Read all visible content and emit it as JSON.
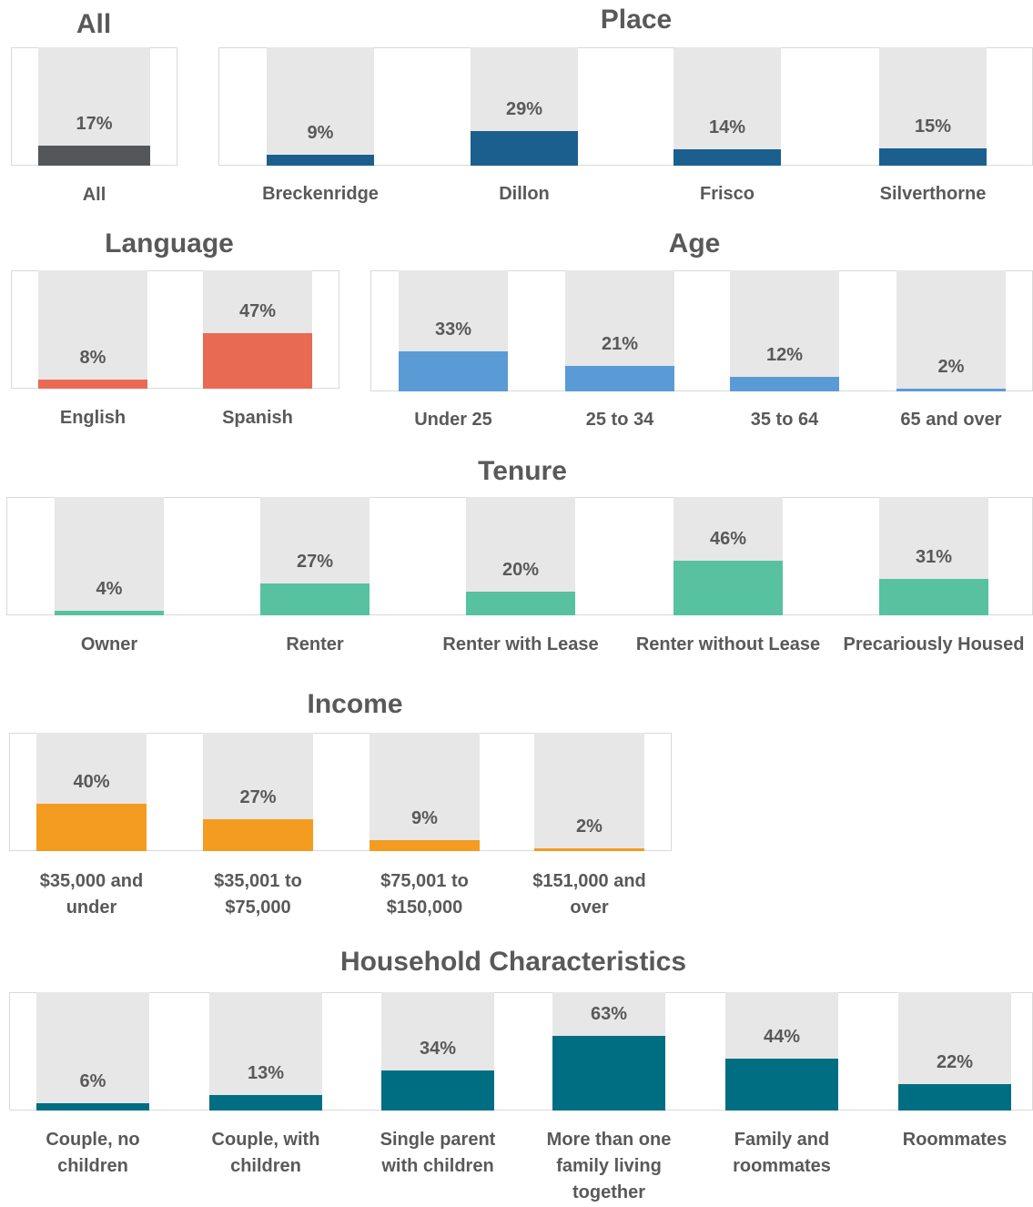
{
  "chart_data": [
    {
      "type": "bar",
      "title": "All",
      "categories": [
        "All"
      ],
      "values": [
        17
      ],
      "value_labels": [
        "17%"
      ],
      "color": "#53575a",
      "ylim": [
        0,
        100
      ]
    },
    {
      "type": "bar",
      "title": "Place",
      "categories": [
        "Breckenridge",
        "Dillon",
        "Frisco",
        "Silverthorne"
      ],
      "values": [
        9,
        29,
        14,
        15
      ],
      "value_labels": [
        "9%",
        "29%",
        "14%",
        "15%"
      ],
      "color": "#1b5f8f",
      "ylim": [
        0,
        100
      ]
    },
    {
      "type": "bar",
      "title": "Language",
      "categories": [
        "English",
        "Spanish"
      ],
      "values": [
        8,
        47
      ],
      "value_labels": [
        "8%",
        "47%"
      ],
      "color": "#e96a53",
      "ylim": [
        0,
        100
      ]
    },
    {
      "type": "bar",
      "title": "Age",
      "categories": [
        "Under 25",
        "25 to 34",
        "35 to 64",
        "65 and over"
      ],
      "values": [
        33,
        21,
        12,
        2
      ],
      "value_labels": [
        "33%",
        "21%",
        "12%",
        "2%"
      ],
      "color": "#5b9bd5",
      "ylim": [
        0,
        100
      ]
    },
    {
      "type": "bar",
      "title": "Tenure",
      "categories": [
        "Owner",
        "Renter",
        "Renter with Lease",
        "Renter without Lease",
        "Precariously Housed"
      ],
      "values": [
        4,
        27,
        20,
        46,
        31
      ],
      "value_labels": [
        "4%",
        "27%",
        "20%",
        "46%",
        "31%"
      ],
      "color": "#57c1a0",
      "ylim": [
        0,
        100
      ]
    },
    {
      "type": "bar",
      "title": "Income",
      "categories": [
        "$35,000 and under",
        "$35,001 to $75,000",
        "$75,001 to $150,000",
        "$151,000 and over"
      ],
      "values": [
        40,
        27,
        9,
        2
      ],
      "value_labels": [
        "40%",
        "27%",
        "9%",
        "2%"
      ],
      "color": "#f39c20",
      "ylim": [
        0,
        100
      ]
    },
    {
      "type": "bar",
      "title": "Household Characteristics",
      "categories": [
        "Couple, no children",
        "Couple, with children",
        "Single parent with children",
        "More than one family living together",
        "Family and roommates",
        "Roommates"
      ],
      "values": [
        6,
        13,
        34,
        63,
        44,
        22
      ],
      "value_labels": [
        "6%",
        "13%",
        "34%",
        "63%",
        "44%",
        "22%"
      ],
      "color": "#006e82",
      "ylim": [
        0,
        100
      ]
    }
  ]
}
